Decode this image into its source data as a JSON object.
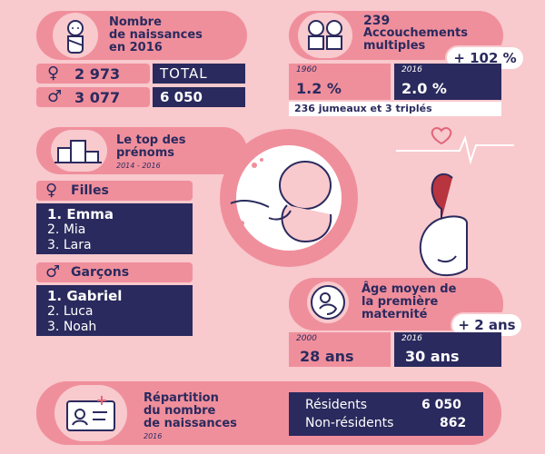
{
  "births": {
    "title_line1": "Nombre",
    "title_line2": "de naissances",
    "title_line3": "en 2016",
    "female_count": "2 973",
    "male_count": "3 077",
    "total_label": "TOTAL",
    "total_value": "6 050",
    "female_symbol": "♀",
    "male_symbol": "♂"
  },
  "multiples": {
    "count": "239",
    "title_line1": "Accouchements",
    "title_line2": "multiples",
    "badge": "+ 102 %",
    "year_old": "1960",
    "year_new": "2016",
    "pct_old": "1.2 %",
    "pct_new": "2.0 %",
    "note": "236 jumeaux et 3 triplés"
  },
  "names": {
    "title_line1": "Le top des",
    "title_line2": "prénoms",
    "period": "2014 - 2016",
    "girls_label": "Filles",
    "girls": [
      {
        "rank": "1.",
        "name": "Emma"
      },
      {
        "rank": "2.",
        "name": "Mia"
      },
      {
        "rank": "3.",
        "name": "Lara"
      }
    ],
    "boys_label": "Garçons",
    "boys": [
      {
        "rank": "1.",
        "name": "Gabriel"
      },
      {
        "rank": "2.",
        "name": "Luca"
      },
      {
        "rank": "3.",
        "name": "Noah"
      }
    ]
  },
  "maternity": {
    "title_line1": "Âge moyen de",
    "title_line2": "la première",
    "title_line3": "maternité",
    "badge": "+ 2 ans",
    "year_old": "2000",
    "year_new": "2016",
    "age_old": "28 ans",
    "age_new": "30 ans"
  },
  "distribution": {
    "title_line1": "Répartition",
    "title_line2": "du nombre",
    "title_line3": "de naissances",
    "year": "2016",
    "residents_label": "Résidents",
    "residents_value": "6 050",
    "nonresidents_label": "Non-résidents",
    "nonresidents_value": "862"
  },
  "colors": {
    "background": "#f8c9cd",
    "pill": "#f08f9c",
    "navy": "#2a2a5e",
    "white": "#ffffff"
  }
}
